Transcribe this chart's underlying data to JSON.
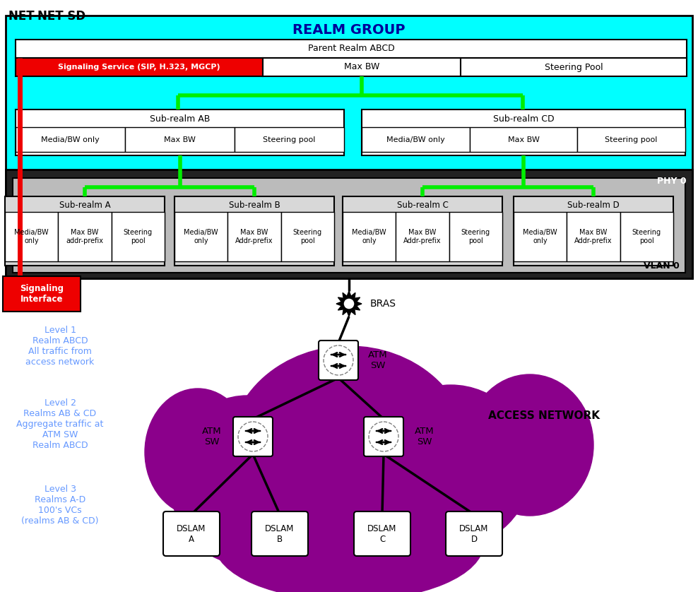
{
  "title": "NET-NET SD",
  "realm_group_label": "REALM GROUP",
  "parent_realm_label": "Parent Realm ABCD",
  "signaling_service_label": "Signaling Service (SIP, H.323, MGCP)",
  "max_bw_label": "Max BW",
  "steering_pool_label": "Steering Pool",
  "sub_realm_ab_label": "Sub-realm AB",
  "sub_realm_cd_label": "Sub-realm CD",
  "media_bw_only_label": "Media/BW only",
  "steering_pool_label2": "Steering pool",
  "phy0_label": "PHY 0",
  "vlan0_label": "VLAN 0",
  "sub_realms": [
    "Sub-realm A",
    "Sub-realm B",
    "Sub-realm C",
    "Sub-realm D"
  ],
  "sub_realm_cols_A": [
    "Media/BW\nonly",
    "Max BW\naddr-prefix",
    "Steering\npool"
  ],
  "sub_realm_cols_BCD": [
    "Media/BW\nonly",
    "Max BW\nAddr-prefix",
    "Steering\npool"
  ],
  "bras_label": "BRAS",
  "atm_sw_label": "ATM\nSW",
  "access_network_label": "ACCESS NETWORK",
  "dslam_labels": [
    "DSLAM\nA",
    "DSLAM\nB",
    "DSLAM\nC",
    "DSLAM\nD"
  ],
  "level_texts": [
    "Level 1\nRealm ABCD\nAll traffic from\naccess network",
    "Level 2\nRealms AB & CD\nAggregate traffic at\nATM SW\nRealm ABCD",
    "Level 3\nRealms A-D\n100's VCs\n(realms AB & CD)"
  ],
  "colors": {
    "cyan_bg": "#00FFFF",
    "dark_bg": "#222222",
    "gray_bg": "#BBBBBB",
    "white_box": "#FFFFFF",
    "red_box": "#EE0000",
    "green_line": "#00EE00",
    "black_line": "#000000",
    "purple_cloud": "#8B008B",
    "light_gray_box": "#D8D8D8",
    "level_text_color": "#6699FF",
    "title_color": "#000000",
    "realm_group_color": "#000099",
    "red_sig": "#EE0000",
    "white": "#FFFFFF",
    "black": "#000000"
  },
  "figsize": [
    9.88,
    8.38
  ],
  "dpi": 100
}
